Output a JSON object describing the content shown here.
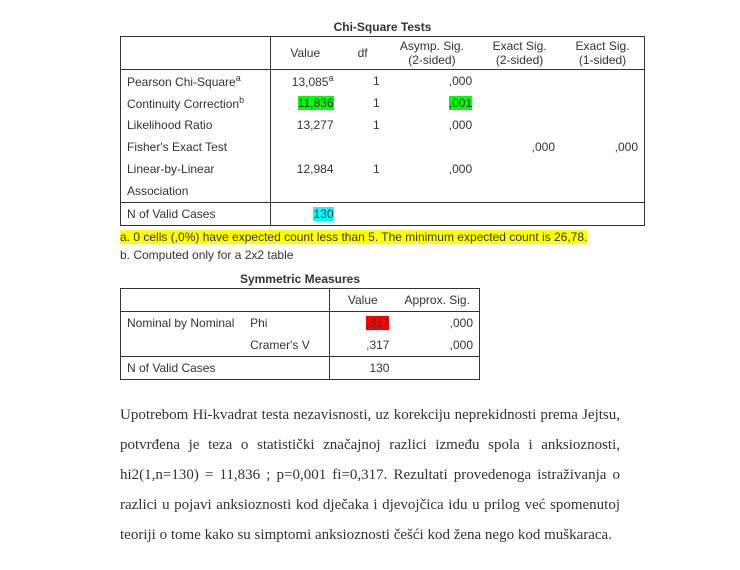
{
  "chi": {
    "title": "Chi-Square Tests",
    "headers": {
      "value": "Value",
      "df": "df",
      "asymp": "Asymp. Sig. (2-sided)",
      "exact2": "Exact Sig. (2-sided)",
      "exact1": "Exact Sig. (1-sided)"
    },
    "rows": [
      {
        "label": "Pearson Chi-Square",
        "sup": "a",
        "value": "13,085",
        "vsup": "a",
        "df": "1",
        "asymp": ",000",
        "exact2": "",
        "exact1": ""
      },
      {
        "label": "Continuity Correction",
        "sup": "b",
        "value": "11,836",
        "vhl": "hl-green",
        "df": "1",
        "asymp": ",001",
        "ahl": "hl-green",
        "exact2": "",
        "exact1": ""
      },
      {
        "label": "Likelihood Ratio",
        "value": "13,277",
        "df": "1",
        "asymp": ",000",
        "exact2": "",
        "exact1": ""
      },
      {
        "label": "Fisher's Exact Test",
        "value": "",
        "df": "",
        "asymp": "",
        "exact2": ",000",
        "exact1": ",000"
      },
      {
        "label": "Linear-by-Linear",
        "value": "12,984",
        "df": "1",
        "asymp": ",000",
        "exact2": "",
        "exact1": ""
      },
      {
        "label": "Association",
        "value": "",
        "df": "",
        "asymp": "",
        "exact2": "",
        "exact1": ""
      }
    ],
    "nrow": {
      "label": "N of Valid Cases",
      "value": "130",
      "vhl": "hl-cyan"
    },
    "note_a": "a. 0 cells (,0%) have expected count less than 5. The minimum expected count is 26,78.",
    "note_b": "b. Computed only for a 2x2 table"
  },
  "sym": {
    "title": "Symmetric Measures",
    "headers": {
      "value": "Value",
      "approx": "Approx. Sig."
    },
    "rows": [
      {
        "cat": "Nominal by Nominal",
        "stat": "Phi",
        "value": ",317",
        "vhl": "hl-red",
        "sig": ",000"
      },
      {
        "cat": "",
        "stat": "Cramer's V",
        "value": ",317",
        "sig": ",000"
      }
    ],
    "nrow": {
      "label": "N of Valid Cases",
      "value": "130"
    }
  },
  "paragraph": "Upotrebom Hi-kvadrat testa nezavisnosti, uz korekciju neprekidnosti prema Jejtsu, potvrđena je teza o statistički značajnoj razlici između spola i anksioznosti, hi2(1,n=130) = 11,836 ; p=0,001 fi=0,317.  Rezultati provedenoga istraživanja o razlici u pojavi anksioznosti kod dječaka i djevojčica idu u prilog već spomenutoj teoriji o tome kako su simptomi anksioznosti češći kod žena nego kod muškaraca."
}
